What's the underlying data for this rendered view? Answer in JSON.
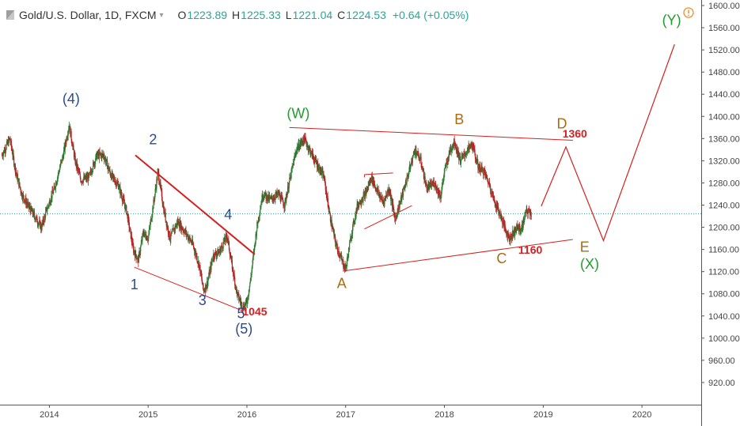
{
  "header": {
    "title": "Gold/U.S. Dollar, 1D, FXCM",
    "open_label": "O",
    "open": "1223.89",
    "high_label": "H",
    "high": "1225.33",
    "low_label": "L",
    "low": "1221.04",
    "close_label": "C",
    "close": "1224.53",
    "change": "+0.64 (+0.05%)"
  },
  "colors": {
    "blue": "#2b4c8c",
    "green": "#1f9c2f",
    "orange": "#a86c12",
    "red": "#d42020",
    "up": "#2e7d32",
    "down": "#b22222",
    "price_line": "#26a69a",
    "alert": "#f0902c"
  },
  "icons": [
    "symbol-search-icon",
    "dropdown-caret-icon",
    "alert-icon"
  ],
  "chart_data": {
    "type": "line",
    "x_axis": {
      "range": [
        2013.5,
        2020.6
      ],
      "ticks": [
        "2014",
        "2015",
        "2016",
        "2017",
        "2018",
        "2019",
        "2020"
      ]
    },
    "y_axis": {
      "range": [
        880,
        1610
      ],
      "ticks": [
        920,
        960,
        1000,
        1040,
        1080,
        1120,
        1160,
        1200,
        1240,
        1280,
        1320,
        1360,
        1400,
        1440,
        1480,
        1520,
        1560,
        1600
      ]
    },
    "current_price": 1224.53,
    "price_path": [
      [
        2013.52,
        1330
      ],
      [
        2013.6,
        1360
      ],
      [
        2013.66,
        1300
      ],
      [
        2013.72,
        1260
      ],
      [
        2013.78,
        1240
      ],
      [
        2013.85,
        1220
      ],
      [
        2013.92,
        1200
      ],
      [
        2013.97,
        1230
      ],
      [
        2014.05,
        1270
      ],
      [
        2014.14,
        1330
      ],
      [
        2014.2,
        1385
      ],
      [
        2014.26,
        1320
      ],
      [
        2014.32,
        1285
      ],
      [
        2014.4,
        1290
      ],
      [
        2014.48,
        1330
      ],
      [
        2014.55,
        1330
      ],
      [
        2014.62,
        1295
      ],
      [
        2014.7,
        1275
      ],
      [
        2014.78,
        1230
      ],
      [
        2014.85,
        1160
      ],
      [
        2014.9,
        1140
      ],
      [
        2014.95,
        1190
      ],
      [
        2015.0,
        1180
      ],
      [
        2015.06,
        1250
      ],
      [
        2015.1,
        1300
      ],
      [
        2015.16,
        1230
      ],
      [
        2015.22,
        1180
      ],
      [
        2015.3,
        1210
      ],
      [
        2015.38,
        1190
      ],
      [
        2015.45,
        1170
      ],
      [
        2015.52,
        1130
      ],
      [
        2015.56,
        1085
      ],
      [
        2015.6,
        1100
      ],
      [
        2015.66,
        1150
      ],
      [
        2015.72,
        1155
      ],
      [
        2015.8,
        1185
      ],
      [
        2015.84,
        1140
      ],
      [
        2015.9,
        1080
      ],
      [
        2015.96,
        1055
      ],
      [
        2016.0,
        1065
      ],
      [
        2016.04,
        1110
      ],
      [
        2016.1,
        1200
      ],
      [
        2016.16,
        1260
      ],
      [
        2016.24,
        1250
      ],
      [
        2016.32,
        1260
      ],
      [
        2016.38,
        1240
      ],
      [
        2016.44,
        1290
      ],
      [
        2016.5,
        1340
      ],
      [
        2016.58,
        1360
      ],
      [
        2016.66,
        1330
      ],
      [
        2016.72,
        1310
      ],
      [
        2016.78,
        1290
      ],
      [
        2016.84,
        1220
      ],
      [
        2016.9,
        1170
      ],
      [
        2016.96,
        1140
      ],
      [
        2017.0,
        1125
      ],
      [
        2017.06,
        1190
      ],
      [
        2017.12,
        1240
      ],
      [
        2017.2,
        1260
      ],
      [
        2017.26,
        1290
      ],
      [
        2017.32,
        1265
      ],
      [
        2017.38,
        1245
      ],
      [
        2017.44,
        1270
      ],
      [
        2017.5,
        1215
      ],
      [
        2017.56,
        1250
      ],
      [
        2017.64,
        1300
      ],
      [
        2017.7,
        1340
      ],
      [
        2017.76,
        1320
      ],
      [
        2017.82,
        1270
      ],
      [
        2017.9,
        1280
      ],
      [
        2017.96,
        1255
      ],
      [
        2018.0,
        1300
      ],
      [
        2018.06,
        1340
      ],
      [
        2018.1,
        1355
      ],
      [
        2018.16,
        1320
      ],
      [
        2018.22,
        1335
      ],
      [
        2018.28,
        1350
      ],
      [
        2018.34,
        1310
      ],
      [
        2018.4,
        1300
      ],
      [
        2018.46,
        1275
      ],
      [
        2018.5,
        1250
      ],
      [
        2018.56,
        1225
      ],
      [
        2018.62,
        1195
      ],
      [
        2018.66,
        1180
      ],
      [
        2018.7,
        1190
      ],
      [
        2018.74,
        1200
      ],
      [
        2018.78,
        1195
      ],
      [
        2018.82,
        1225
      ],
      [
        2018.86,
        1230
      ],
      [
        2018.88,
        1224
      ]
    ],
    "annotations": [
      {
        "label": "(4)",
        "x": 2014.22,
        "y": 1423,
        "color": "blue"
      },
      {
        "label": "2",
        "x": 2015.05,
        "y": 1350,
        "color": "blue"
      },
      {
        "label": "4",
        "x": 2015.81,
        "y": 1214,
        "color": "blue"
      },
      {
        "label": "1",
        "x": 2014.86,
        "y": 1088,
        "color": "blue"
      },
      {
        "label": "3",
        "x": 2015.55,
        "y": 1060,
        "color": "blue"
      },
      {
        "label": "5",
        "x": 2015.94,
        "y": 1036,
        "color": "blue"
      },
      {
        "label": "(5)",
        "x": 2015.97,
        "y": 1008,
        "color": "blue"
      },
      {
        "label": "(W)",
        "x": 2016.52,
        "y": 1397,
        "color": "green"
      },
      {
        "label": "A",
        "x": 2016.96,
        "y": 1090,
        "color": "orange"
      },
      {
        "label": "B",
        "x": 2018.15,
        "y": 1386,
        "color": "orange"
      },
      {
        "label": "C",
        "x": 2018.58,
        "y": 1135,
        "color": "orange"
      },
      {
        "label": "D",
        "x": 2019.19,
        "y": 1378,
        "color": "orange"
      },
      {
        "label": "E",
        "x": 2019.42,
        "y": 1156,
        "color": "orange"
      },
      {
        "label": "(X)",
        "x": 2019.47,
        "y": 1125,
        "color": "green"
      },
      {
        "label": "(Y)",
        "x": 2020.3,
        "y": 1565,
        "color": "green"
      }
    ],
    "price_labels": [
      {
        "label": "1045",
        "x": 2016.08,
        "y": 1041
      },
      {
        "label": "1360",
        "x": 2019.32,
        "y": 1362
      },
      {
        "label": "1160",
        "x": 2018.87,
        "y": 1152
      }
    ],
    "trendlines": [
      {
        "from": [
          2014.87,
          1330
        ],
        "to": [
          2016.08,
          1151
        ],
        "width": 2
      },
      {
        "from": [
          2014.86,
          1128
        ],
        "to": [
          2015.96,
          1049
        ],
        "width": 1
      },
      {
        "from": [
          2016.43,
          1380
        ],
        "to": [
          2019.3,
          1357
        ],
        "width": 1
      },
      {
        "from": [
          2016.97,
          1121
        ],
        "to": [
          2019.3,
          1178
        ],
        "width": 1
      },
      {
        "from": [
          2017.19,
          1295
        ],
        "to": [
          2017.48,
          1298
        ],
        "width": 1
      },
      {
        "from": [
          2017.19,
          1295
        ],
        "to": [
          2017.19,
          1290
        ],
        "width": 1
      },
      {
        "from": [
          2017.19,
          1197
        ],
        "to": [
          2017.67,
          1239
        ],
        "width": 1
      }
    ],
    "projection": [
      [
        2018.98,
        1238
      ],
      [
        2019.23,
        1345
      ],
      [
        2019.61,
        1176
      ],
      [
        2020.33,
        1530
      ]
    ]
  }
}
